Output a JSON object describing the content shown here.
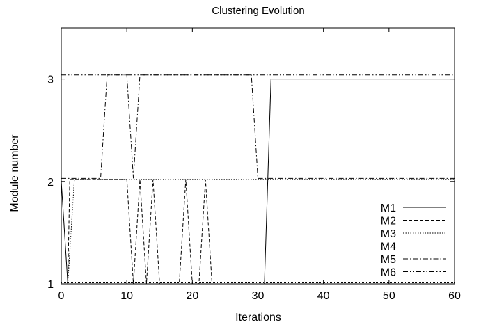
{
  "chart_data": {
    "type": "line",
    "title": "Clustering Evolution",
    "xlabel": "Iterations",
    "ylabel": "Module number",
    "xlim": [
      0,
      60
    ],
    "ylim": [
      1,
      3.5
    ],
    "xticks": [
      0,
      10,
      20,
      30,
      40,
      50,
      60
    ],
    "yticks": [
      1,
      2,
      3
    ],
    "grid": false,
    "legend_position": "bottom-right",
    "series": [
      {
        "name": "M1",
        "dash": "solid",
        "x": [
          0,
          1,
          31,
          32,
          60
        ],
        "y": [
          2,
          1,
          1,
          3,
          3
        ]
      },
      {
        "name": "M2",
        "dash": "dashed",
        "x": [
          0,
          1,
          1.3,
          10,
          11,
          12,
          13,
          14,
          15,
          18,
          19,
          20,
          21,
          22,
          23,
          60
        ],
        "y": [
          1,
          1,
          2.02,
          2.02,
          1,
          2.02,
          1,
          2.02,
          1,
          1,
          2.02,
          1,
          1,
          2.02,
          1,
          1
        ]
      },
      {
        "name": "M3",
        "dash": "dotted",
        "x": [
          0,
          1,
          2,
          60
        ],
        "y": [
          1,
          1,
          2.02,
          2.02
        ]
      },
      {
        "name": "M4",
        "dash": "densely-dotted",
        "x": [
          0,
          60
        ],
        "y": [
          1.01,
          1.01
        ]
      },
      {
        "name": "M5",
        "dash": "dash-dot",
        "x": [
          0,
          1,
          6,
          7,
          10,
          11,
          12,
          29,
          30,
          60
        ],
        "y": [
          2.03,
          2.03,
          2.03,
          3.04,
          3.04,
          2.03,
          3.04,
          3.04,
          2.03,
          2.03
        ]
      },
      {
        "name": "M6",
        "dash": "dash-dot-dot",
        "x": [
          0,
          60
        ],
        "y": [
          3.04,
          3.04
        ]
      }
    ]
  }
}
